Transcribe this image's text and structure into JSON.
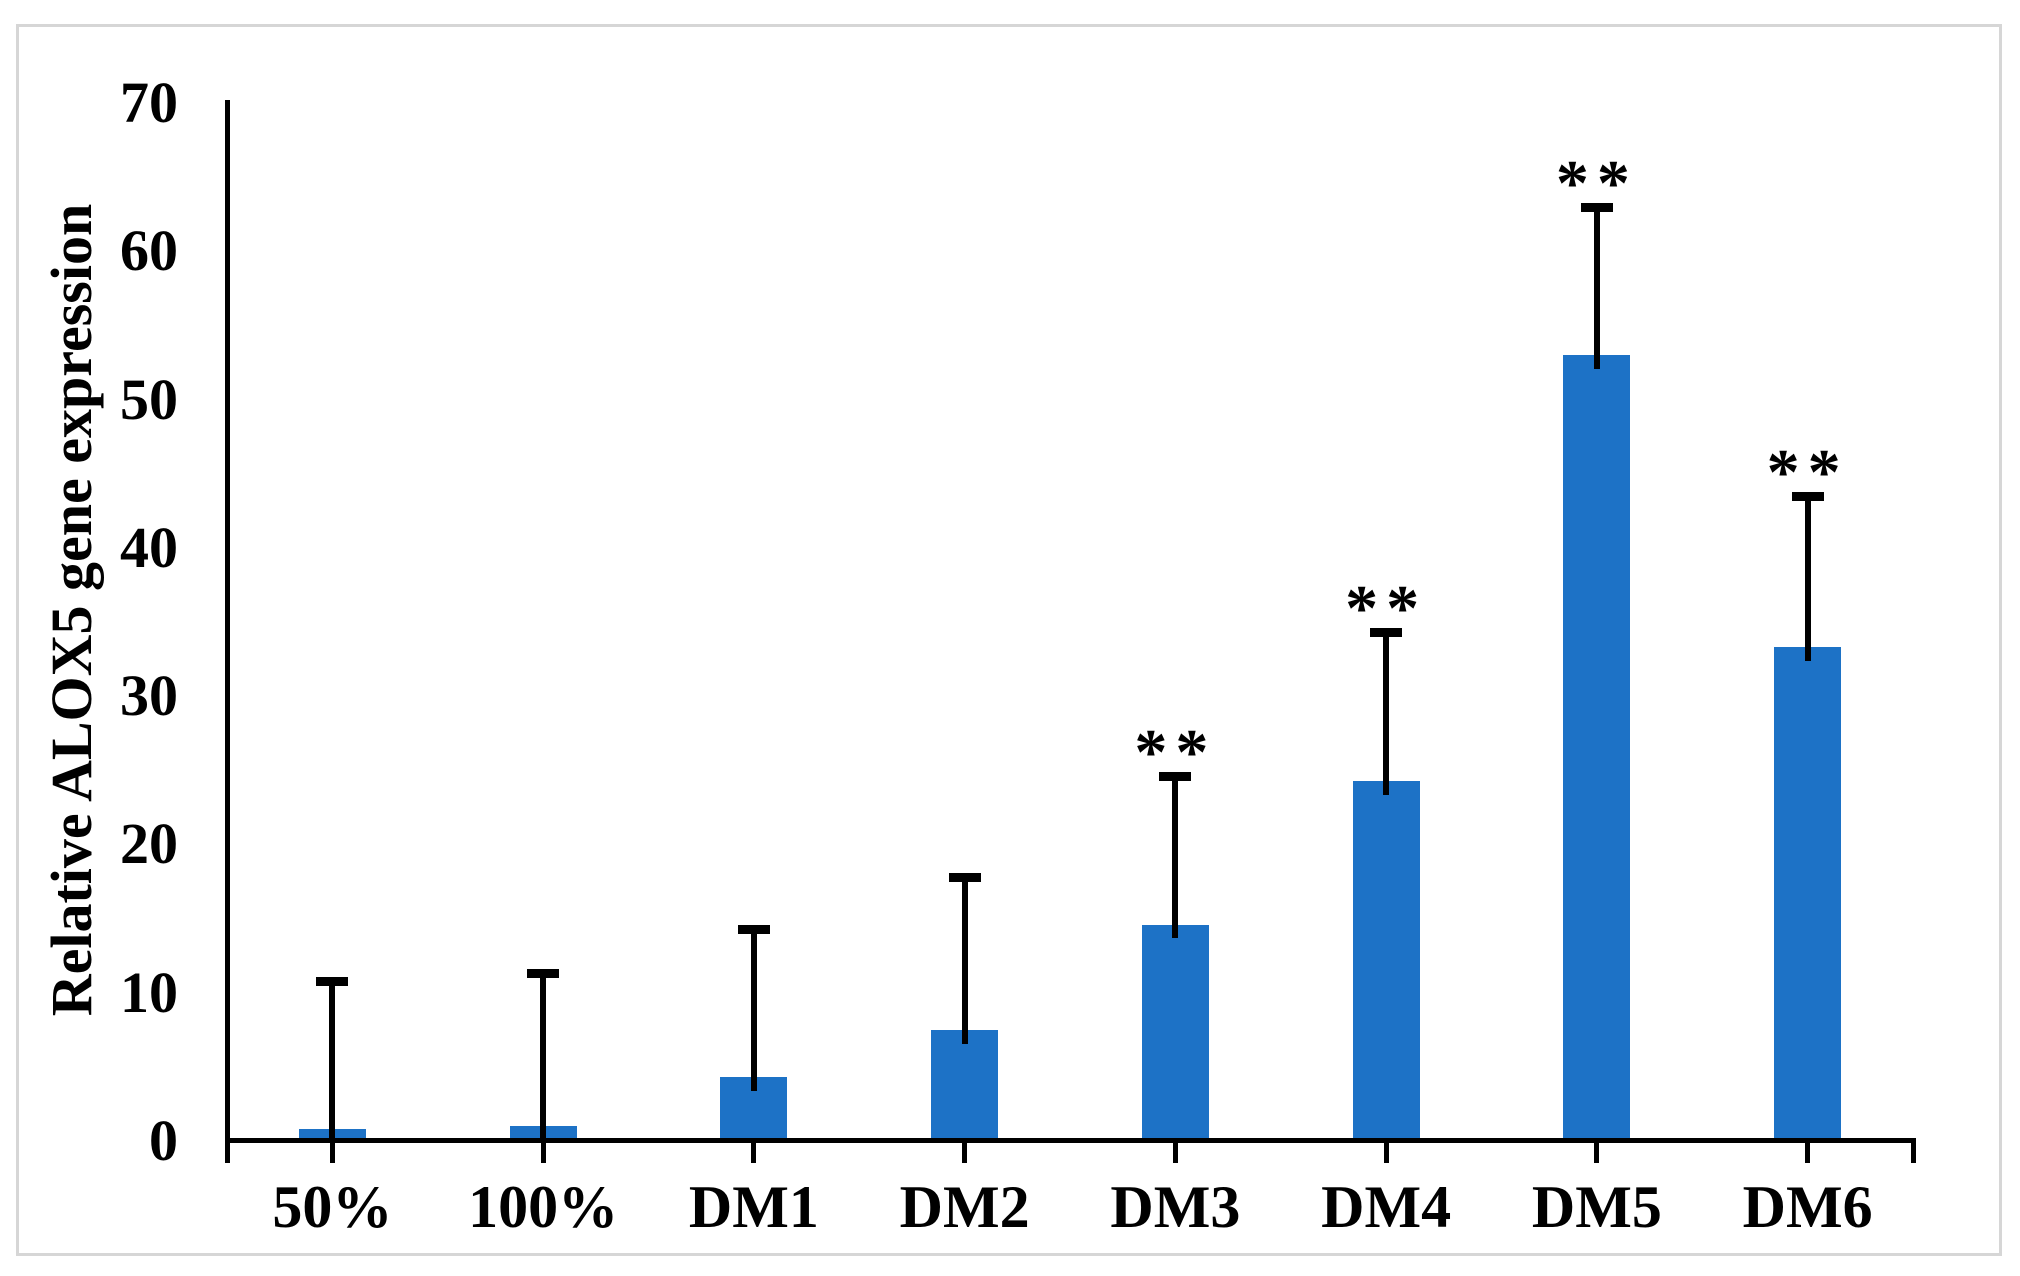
{
  "figure": {
    "background_color": "#ffffff",
    "border_color": "#d6d6d6"
  },
  "chart_data": {
    "type": "bar",
    "title": "",
    "xlabel": "",
    "ylabel": "Relative ALOX5 gene expression",
    "categories": [
      "50%",
      "100%",
      "DM1",
      "DM2",
      "DM3",
      "DM4",
      "DM5",
      "DM6"
    ],
    "values": [
      0.8,
      1.0,
      4.3,
      7.5,
      14.6,
      24.3,
      53.0,
      33.3
    ],
    "error_plus": [
      10.0,
      10.3,
      10.0,
      10.3,
      10.0,
      10.0,
      10.0,
      10.2
    ],
    "significance": [
      "",
      "",
      "",
      "",
      "**",
      "**",
      "**",
      "**"
    ],
    "yticks": [
      0,
      10,
      20,
      30,
      40,
      50,
      60,
      70
    ],
    "ylim": [
      0,
      70
    ],
    "grid": false,
    "legend": "none",
    "error_bar_direction": "positive-only",
    "bar_color": "#1d72c6",
    "axis_color": "#000000",
    "text_color": "#000000"
  }
}
